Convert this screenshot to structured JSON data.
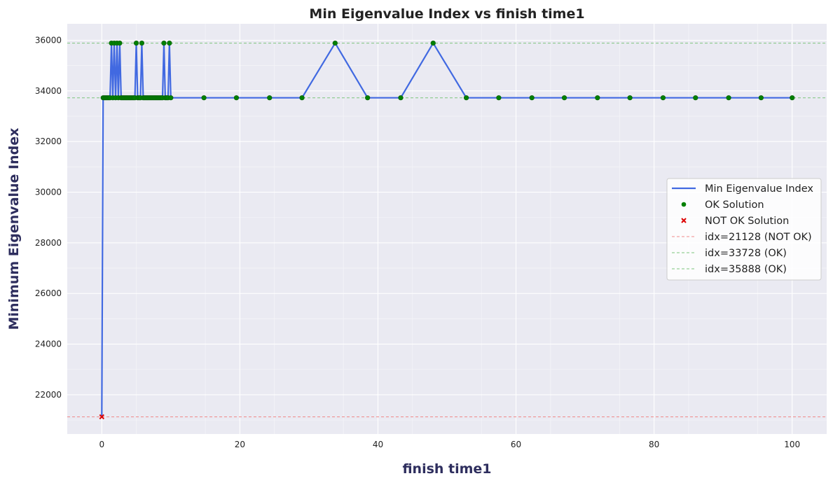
{
  "chart_data": {
    "type": "line",
    "title": "Min Eigenvalue Index vs finish time1",
    "xlabel": "finish time1",
    "ylabel": "Minimum Eigenvalue Index",
    "xlim": [
      -5,
      105
    ],
    "ylim": [
      20450,
      36650
    ],
    "xticks": [
      0,
      20,
      40,
      60,
      80,
      100
    ],
    "yticks": [
      22000,
      24000,
      26000,
      28000,
      30000,
      32000,
      34000,
      36000
    ],
    "grid": true,
    "legend_position": "center-right",
    "colors": {
      "line": "#4169e1",
      "ok": "#008000",
      "not_ok": "#dd0000",
      "ref_not_ok": "#f08a8a",
      "ref_ok": "#7cc47c",
      "plot_bg": "#eaeaf2",
      "grid": "#ffffff"
    },
    "series": [
      {
        "name": "Min Eigenvalue Index",
        "x": [
          0,
          0.2,
          0.4,
          0.6,
          0.8,
          1.0,
          1.2,
          1.4,
          1.6,
          1.8,
          2.0,
          2.2,
          2.4,
          2.6,
          2.8,
          3.0,
          3.2,
          3.4,
          3.6,
          3.8,
          4.0,
          4.2,
          4.4,
          4.6,
          4.8,
          5.0,
          5.2,
          5.4,
          5.6,
          5.8,
          6.0,
          6.2,
          6.4,
          6.6,
          6.8,
          7.0,
          7.2,
          7.4,
          7.6,
          7.8,
          8.0,
          8.2,
          8.4,
          8.6,
          8.8,
          9.0,
          9.2,
          9.4,
          9.6,
          9.8,
          10.0,
          14.8,
          19.5,
          24.3,
          29.0,
          33.8,
          38.5,
          43.3,
          48.0,
          52.8,
          57.5,
          62.3,
          67.0,
          71.8,
          76.5,
          81.3,
          86.0,
          90.8,
          95.5,
          100.0
        ],
        "y": [
          21128,
          33728,
          33728,
          33728,
          33728,
          33728,
          33728,
          35888,
          33728,
          35888,
          33728,
          35888,
          33728,
          35888,
          33728,
          33728,
          33728,
          33728,
          33728,
          33728,
          33728,
          33728,
          33728,
          33728,
          33728,
          35888,
          33728,
          33728,
          33728,
          35888,
          33728,
          33728,
          33728,
          33728,
          33728,
          33728,
          33728,
          33728,
          33728,
          33728,
          33728,
          33728,
          33728,
          33728,
          33728,
          35888,
          33728,
          33728,
          33728,
          35888,
          33728,
          33728,
          33728,
          33728,
          33728,
          35888,
          33728,
          33728,
          35888,
          33728,
          33728,
          33728,
          33728,
          33728,
          33728,
          33728,
          33728,
          33728,
          33728,
          33728
        ]
      }
    ],
    "reference_lines": [
      {
        "name": "idx=21128 (NOT OK)",
        "y": 21128,
        "status": "not_ok"
      },
      {
        "name": "idx=33728 (OK)",
        "y": 33728,
        "status": "ok"
      },
      {
        "name": "idx=35888 (OK)",
        "y": 35888,
        "status": "ok"
      }
    ],
    "legend": [
      {
        "label": "Min Eigenvalue Index",
        "kind": "line"
      },
      {
        "label": "OK Solution",
        "kind": "ok"
      },
      {
        "label": "NOT OK Solution",
        "kind": "not_ok"
      },
      {
        "label": "idx=21128 (NOT OK)",
        "kind": "ref_not_ok"
      },
      {
        "label": "idx=33728 (OK)",
        "kind": "ref_ok"
      },
      {
        "label": "idx=35888 (OK)",
        "kind": "ref_ok"
      }
    ]
  }
}
